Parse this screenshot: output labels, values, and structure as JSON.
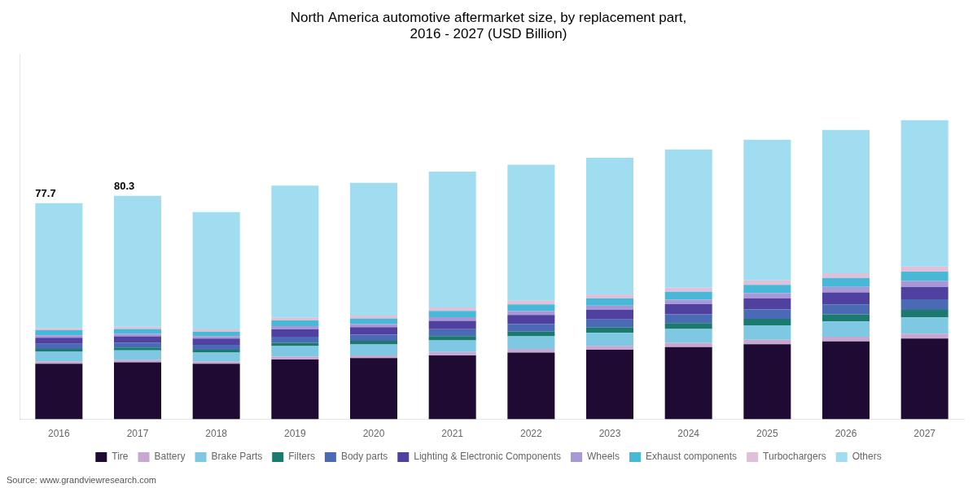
{
  "chart_data": {
    "type": "bar",
    "stacked": true,
    "title": "North America automotive aftermarket size, by replacement part,\n2016 - 2027 (USD Billion)",
    "categories": [
      "2016",
      "2017",
      "2018",
      "2019",
      "2020",
      "2021",
      "2022",
      "2023",
      "2024",
      "2025",
      "2026",
      "2027"
    ],
    "series": [
      {
        "name": "Tire",
        "color": "#1e0a32",
        "values": [
          20.0,
          20.5,
          20.0,
          21.5,
          22.0,
          23.0,
          24.0,
          25.0,
          26.0,
          27.0,
          28.0,
          29.0
        ]
      },
      {
        "name": "Battery",
        "color": "#c8a8d0",
        "values": [
          0.8,
          0.8,
          0.8,
          1.0,
          1.0,
          1.2,
          1.3,
          1.4,
          1.5,
          1.6,
          1.7,
          1.8
        ]
      },
      {
        "name": "Brake Parts",
        "color": "#7ec8e3",
        "values": [
          3.5,
          3.5,
          3.2,
          3.8,
          3.9,
          4.2,
          4.5,
          4.7,
          5.0,
          5.2,
          5.5,
          5.8
        ]
      },
      {
        "name": "Filters",
        "color": "#1a7a6e",
        "values": [
          1.0,
          1.0,
          1.0,
          1.2,
          1.3,
          1.5,
          1.7,
          1.9,
          2.1,
          2.3,
          2.5,
          2.7
        ]
      },
      {
        "name": "Body parts",
        "color": "#4a6ab5",
        "values": [
          1.8,
          1.8,
          1.8,
          2.2,
          2.2,
          2.5,
          2.7,
          2.9,
          3.1,
          3.4,
          3.6,
          3.8
        ]
      },
      {
        "name": "Lighting & Electronic Components",
        "color": "#5040a0",
        "values": [
          2.2,
          2.2,
          2.2,
          2.7,
          2.7,
          3.0,
          3.3,
          3.5,
          3.7,
          4.0,
          4.3,
          4.5
        ]
      },
      {
        "name": "Wheels",
        "color": "#a898d8",
        "values": [
          0.9,
          0.9,
          0.9,
          1.1,
          1.1,
          1.3,
          1.4,
          1.5,
          1.6,
          1.8,
          2.0,
          2.1
        ]
      },
      {
        "name": "Exhaust components",
        "color": "#48b8d8",
        "values": [
          1.8,
          1.8,
          1.6,
          2.0,
          2.1,
          2.3,
          2.4,
          2.6,
          2.8,
          3.0,
          3.2,
          3.4
        ]
      },
      {
        "name": "Turbochargers",
        "color": "#e0c0d8",
        "values": [
          0.7,
          0.8,
          0.8,
          1.0,
          1.0,
          1.2,
          1.3,
          1.4,
          1.5,
          1.6,
          1.7,
          1.8
        ]
      },
      {
        "name": "Others",
        "color": "#a0ddf0",
        "values": [
          45.0,
          47.0,
          42.2,
          47.5,
          47.7,
          48.8,
          48.9,
          49.1,
          49.7,
          50.6,
          51.5,
          52.6
        ]
      }
    ],
    "ylim": [
      0,
      131.15
    ],
    "grid": false,
    "legend": "bottom",
    "tick_labels": "x",
    "annotations": [
      {
        "category": "2016",
        "text": "77.7"
      },
      {
        "category": "2017",
        "text": "80.3"
      }
    ],
    "source": "Source: www.grandviewresearch.com"
  }
}
